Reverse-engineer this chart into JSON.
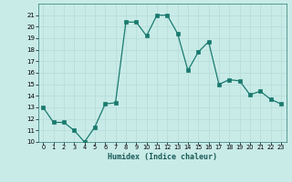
{
  "x": [
    0,
    1,
    2,
    3,
    4,
    5,
    6,
    7,
    8,
    9,
    10,
    11,
    12,
    13,
    14,
    15,
    16,
    17,
    18,
    19,
    20,
    21,
    22,
    23
  ],
  "y": [
    13.0,
    11.7,
    11.7,
    11.0,
    10.0,
    11.3,
    13.3,
    13.4,
    20.4,
    20.4,
    19.2,
    21.0,
    21.0,
    19.4,
    16.2,
    17.8,
    18.7,
    15.0,
    15.4,
    15.3,
    14.1,
    14.4,
    13.7,
    13.3
  ],
  "xlabel": "Humidex (Indice chaleur)",
  "xlim": [
    -0.5,
    23.5
  ],
  "ylim": [
    10,
    22
  ],
  "yticks": [
    10,
    11,
    12,
    13,
    14,
    15,
    16,
    17,
    18,
    19,
    20,
    21
  ],
  "xticks": [
    0,
    1,
    2,
    3,
    4,
    5,
    6,
    7,
    8,
    9,
    10,
    11,
    12,
    13,
    14,
    15,
    16,
    17,
    18,
    19,
    20,
    21,
    22,
    23
  ],
  "line_color": "#1a7a6e",
  "marker_color": "#1a7a6e",
  "bg_color": "#c8ebe8",
  "grid_color": "#b5dbd7"
}
